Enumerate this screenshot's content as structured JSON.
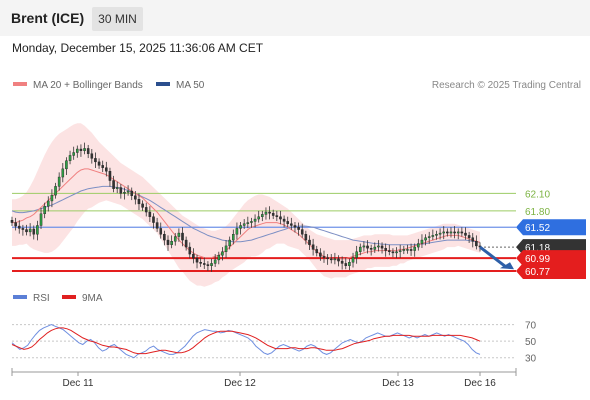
{
  "header": {
    "title": "Brent (ICE)",
    "timeframe": "30 MIN"
  },
  "datetime": "Monday, December 15, 2025 11:36:06 AM CET",
  "legend": {
    "ma_bb": {
      "label": "MA 20 + Bollinger Bands",
      "color": "#f08080"
    },
    "ma50": {
      "label": "MA 50",
      "color": "#2b4f8e"
    },
    "copyright": "Research © 2025 Trading Central"
  },
  "rsi_legend": {
    "rsi": {
      "label": "RSI",
      "color": "#5b7fd6"
    },
    "ma9": {
      "label": "9MA",
      "color": "#e02020"
    }
  },
  "chart_data": [
    {
      "type": "candlestick",
      "x_ticks": [
        "Dec 11",
        "Dec 12",
        "Dec 13",
        "Dec 16"
      ],
      "ylim": [
        60.65,
        63.7
      ],
      "levels": [
        {
          "value": 62.1,
          "label": "62.10",
          "style": "green-line"
        },
        {
          "value": 61.8,
          "label": "61.80",
          "style": "green-line"
        },
        {
          "value": 61.52,
          "label": "61.52",
          "style": "blue-line"
        },
        {
          "value": 61.18,
          "label": "61.18",
          "style": "current-price"
        },
        {
          "value": 60.99,
          "label": "60.99",
          "style": "red-line"
        },
        {
          "value": 60.77,
          "label": "60.77",
          "style": "red-line"
        }
      ],
      "closes": [
        61.6,
        61.54,
        61.5,
        61.48,
        61.44,
        61.49,
        61.4,
        61.55,
        61.75,
        61.88,
        61.97,
        62.07,
        62.22,
        62.38,
        62.52,
        62.66,
        62.75,
        62.8,
        62.86,
        62.83,
        62.87,
        62.78,
        62.7,
        62.64,
        62.58,
        62.54,
        62.48,
        62.32,
        62.18,
        62.2,
        62.1,
        62.12,
        62.14,
        62.06,
        62.0,
        61.92,
        61.86,
        61.78,
        61.7,
        61.6,
        61.5,
        61.4,
        61.3,
        61.22,
        61.28,
        61.36,
        61.42,
        61.3,
        61.18,
        61.06,
        60.99,
        60.92,
        60.9,
        60.88,
        60.86,
        60.9,
        60.96,
        61.04,
        61.1,
        61.2,
        61.3,
        61.4,
        61.5,
        61.55,
        61.58,
        61.6,
        61.62,
        61.66,
        61.7,
        61.74,
        61.78,
        61.76,
        61.72,
        61.7,
        61.66,
        61.62,
        61.58,
        61.55,
        61.52,
        61.48,
        61.4,
        61.3,
        61.22,
        61.14,
        61.08,
        61.02,
        61.0,
        60.98,
        60.96,
        60.98,
        60.94,
        60.9,
        60.86,
        60.92,
        61.0,
        61.1,
        61.18,
        61.2,
        61.16,
        61.14,
        61.18,
        61.2,
        61.16,
        61.12,
        61.1,
        61.08,
        61.1,
        61.12,
        61.14,
        61.14,
        61.12,
        61.18,
        61.24,
        61.3,
        61.34,
        61.36,
        61.38,
        61.4,
        61.42,
        61.44,
        61.42,
        61.44,
        61.42,
        61.44,
        61.42,
        61.38,
        61.34,
        61.28,
        61.2,
        61.18
      ],
      "ma20": [
        61.6,
        61.6,
        61.62,
        61.64,
        61.68,
        61.7,
        61.74,
        61.8,
        61.86,
        61.92,
        61.98,
        62.04,
        62.1,
        62.16,
        62.22,
        62.28,
        62.34,
        62.4,
        62.46,
        62.5,
        62.52,
        62.52,
        62.5,
        62.48,
        62.46,
        62.44,
        62.42,
        62.38,
        62.34,
        62.3,
        62.26,
        62.22,
        62.18,
        62.14,
        62.1,
        62.06,
        62.02,
        61.96,
        61.9,
        61.84,
        61.78,
        61.7,
        61.62,
        61.54,
        61.46,
        61.38,
        61.3,
        61.24,
        61.18,
        61.12,
        61.08,
        61.04,
        61.02,
        61.0,
        61.0,
        61.0,
        61.02,
        61.04,
        61.08,
        61.12,
        61.18,
        61.24,
        61.3,
        61.36,
        61.42,
        61.48,
        61.52,
        61.54,
        61.56,
        61.58,
        61.6,
        61.6,
        61.6,
        61.6,
        61.58,
        61.56,
        61.52,
        61.48,
        61.44,
        61.4,
        61.34,
        61.28,
        61.22,
        61.16,
        61.1,
        61.06,
        61.02,
        61.0,
        60.98,
        60.98,
        60.98,
        60.98,
        60.98,
        61.0,
        61.02,
        61.04,
        61.06,
        61.08,
        61.1,
        61.1,
        61.12,
        61.12,
        61.12,
        61.12,
        61.12,
        61.12,
        61.12,
        61.14,
        61.14,
        61.16,
        61.18,
        61.2,
        61.22,
        61.24,
        61.26,
        61.28,
        61.3,
        61.32,
        61.34,
        61.36,
        61.38,
        61.38,
        61.38,
        61.38,
        61.36,
        61.34,
        61.32,
        61.3,
        61.28,
        61.26
      ],
      "bb_upper": [
        62.0,
        62.0,
        62.02,
        62.06,
        62.12,
        62.22,
        62.34,
        62.48,
        62.62,
        62.76,
        62.88,
        62.98,
        63.06,
        63.12,
        63.16,
        63.2,
        63.24,
        63.28,
        63.3,
        63.3,
        63.26,
        63.2,
        63.14,
        63.06,
        62.98,
        62.92,
        62.86,
        62.8,
        62.74,
        62.68,
        62.62,
        62.58,
        62.54,
        62.5,
        62.46,
        62.42,
        62.38,
        62.32,
        62.26,
        62.2,
        62.14,
        62.08,
        62.02,
        61.96,
        61.9,
        61.84,
        61.78,
        61.72,
        61.68,
        61.64,
        61.6,
        61.56,
        61.52,
        61.5,
        61.48,
        61.46,
        61.46,
        61.48,
        61.5,
        61.54,
        61.6,
        61.68,
        61.76,
        61.84,
        61.92,
        61.98,
        62.02,
        62.06,
        62.08,
        62.08,
        62.06,
        62.04,
        62.0,
        61.96,
        61.92,
        61.88,
        61.84,
        61.78,
        61.72,
        61.66,
        61.6,
        61.54,
        61.48,
        61.44,
        61.4,
        61.38,
        61.36,
        61.34,
        61.32,
        61.3,
        61.3,
        61.3,
        61.3,
        61.3,
        61.32,
        61.34,
        61.36,
        61.38,
        61.38,
        61.38,
        61.4,
        61.4,
        61.4,
        61.4,
        61.4,
        61.38,
        61.38,
        61.38,
        61.38,
        61.38,
        61.4,
        61.42,
        61.44,
        61.46,
        61.48,
        61.5,
        61.52,
        61.54,
        61.56,
        61.58,
        61.58,
        61.58,
        61.58,
        61.56,
        61.54,
        61.52,
        61.5,
        61.48,
        61.46,
        61.44
      ],
      "bb_lower": [
        61.2,
        61.2,
        61.22,
        61.22,
        61.24,
        61.18,
        61.14,
        61.12,
        61.1,
        61.08,
        61.08,
        61.1,
        61.14,
        61.2,
        61.28,
        61.36,
        61.44,
        61.52,
        61.62,
        61.7,
        61.78,
        61.84,
        61.86,
        61.9,
        61.94,
        61.96,
        61.98,
        61.96,
        61.94,
        61.92,
        61.9,
        61.86,
        61.82,
        61.78,
        61.74,
        61.7,
        61.66,
        61.6,
        61.54,
        61.48,
        61.42,
        61.32,
        61.22,
        61.12,
        61.02,
        60.92,
        60.82,
        60.76,
        60.68,
        60.6,
        60.56,
        60.52,
        60.52,
        60.5,
        60.52,
        60.54,
        60.58,
        60.6,
        60.66,
        60.7,
        60.76,
        60.8,
        60.84,
        60.88,
        60.92,
        60.98,
        61.02,
        61.02,
        61.04,
        61.08,
        61.14,
        61.16,
        61.2,
        61.24,
        61.24,
        61.24,
        61.2,
        61.18,
        61.16,
        61.14,
        61.08,
        61.02,
        60.96,
        60.88,
        60.8,
        60.74,
        60.68,
        60.66,
        60.64,
        60.66,
        60.66,
        60.66,
        60.66,
        60.7,
        60.72,
        60.74,
        60.76,
        60.78,
        60.82,
        60.82,
        60.84,
        60.84,
        60.84,
        60.84,
        60.84,
        60.86,
        60.86,
        60.9,
        60.9,
        60.94,
        60.96,
        60.98,
        61.0,
        61.02,
        61.04,
        61.06,
        61.08,
        61.1,
        61.12,
        61.14,
        61.18,
        61.18,
        61.18,
        61.2,
        61.18,
        61.16,
        61.14,
        61.12,
        61.1,
        61.08
      ],
      "ma50": [
        61.8,
        61.78,
        61.77,
        61.77,
        61.78,
        61.79,
        61.8,
        61.82,
        61.84,
        61.86,
        61.88,
        61.9,
        61.93,
        61.96,
        61.99,
        62.02,
        62.05,
        62.08,
        62.11,
        62.14,
        62.16,
        62.18,
        62.19,
        62.2,
        62.21,
        62.22,
        62.22,
        62.22,
        62.21,
        62.2,
        62.19,
        62.17,
        62.15,
        62.13,
        62.1,
        62.07,
        62.04,
        62.01,
        61.98,
        61.94,
        61.9,
        61.86,
        61.82,
        61.78,
        61.74,
        61.7,
        61.66,
        61.62,
        61.58,
        61.54,
        61.5,
        61.47,
        61.44,
        61.41,
        61.38,
        61.36,
        61.34,
        61.32,
        61.3,
        61.29,
        61.28,
        61.27,
        61.27,
        61.27,
        61.28,
        61.29,
        61.3,
        61.32,
        61.34,
        61.36,
        61.38,
        61.4,
        61.42,
        61.44,
        61.46,
        61.48,
        61.5,
        61.52,
        61.53,
        61.54,
        61.54,
        61.54,
        61.53,
        61.52,
        61.5,
        61.48,
        61.46,
        61.44,
        61.42,
        61.4,
        61.38,
        61.36,
        61.34,
        61.32,
        61.3,
        61.29,
        61.28,
        61.27,
        61.26,
        61.25,
        61.24,
        61.24,
        61.23,
        61.23,
        61.22,
        61.22,
        61.22,
        61.22,
        61.22,
        61.22,
        61.22,
        61.22,
        61.23,
        61.23,
        61.24,
        61.25,
        61.26,
        61.27,
        61.28,
        61.29,
        61.3,
        61.3,
        61.3,
        61.3,
        61.3,
        61.3,
        61.29,
        61.28,
        61.27,
        61.26
      ]
    },
    {
      "type": "line",
      "x_ticks": [
        "Dec 11",
        "Dec 12",
        "Dec 13",
        "Dec 16"
      ],
      "y_ticks": [
        70,
        50,
        30
      ],
      "ylim": [
        20,
        78
      ],
      "series": [
        {
          "name": "RSI",
          "values": [
            48,
            44,
            40,
            42,
            45,
            52,
            58,
            63,
            66,
            68,
            70,
            68,
            66,
            64,
            60,
            56,
            52,
            48,
            46,
            50,
            52,
            48,
            42,
            38,
            40,
            44,
            46,
            42,
            38,
            34,
            32,
            30,
            34,
            36,
            38,
            42,
            44,
            40,
            38,
            36,
            34,
            34,
            36,
            40,
            44,
            50,
            56,
            60,
            62,
            64,
            63,
            62,
            62,
            60,
            61,
            63,
            62,
            60,
            58,
            56,
            54,
            50,
            44,
            40,
            36,
            34,
            36,
            40,
            44,
            46,
            44,
            42,
            40,
            38,
            40,
            44,
            46,
            44,
            40,
            36,
            34,
            36,
            40,
            44,
            48,
            50,
            52,
            50,
            48,
            50,
            54,
            56,
            58,
            60,
            58,
            56,
            56,
            58,
            60,
            58,
            56,
            54,
            56,
            54,
            56,
            58,
            56,
            58,
            60,
            58,
            56,
            58,
            56,
            54,
            52,
            50,
            46,
            40,
            36,
            34
          ]
        },
        {
          "name": "9MA",
          "values": [
            46,
            44,
            42,
            40,
            41,
            43,
            47,
            52,
            56,
            60,
            63,
            65,
            66,
            66,
            65,
            63,
            60,
            57,
            54,
            52,
            50,
            49,
            47,
            45,
            44,
            43,
            43,
            42,
            41,
            40,
            38,
            36,
            35,
            35,
            35,
            36,
            37,
            38,
            39,
            39,
            38,
            37,
            36,
            36,
            37,
            39,
            42,
            46,
            50,
            54,
            57,
            59,
            61,
            62,
            62,
            62,
            62,
            61,
            60,
            59,
            58,
            56,
            54,
            51,
            48,
            45,
            43,
            41,
            41,
            41,
            41,
            42,
            42,
            41,
            41,
            41,
            42,
            42,
            41,
            40,
            39,
            39,
            39,
            40,
            41,
            43,
            45,
            47,
            48,
            49,
            50,
            51,
            53,
            54,
            55,
            56,
            56,
            57,
            57,
            57,
            57,
            57,
            56,
            56,
            56,
            56,
            56,
            57,
            57,
            57,
            57,
            57,
            57,
            57,
            57,
            56,
            55,
            54,
            52,
            50
          ]
        }
      ]
    }
  ]
}
